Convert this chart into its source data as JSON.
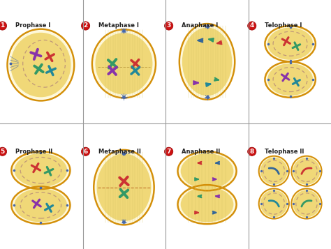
{
  "bg_color": "#ffffff",
  "cell_fill": "#f0d878",
  "cell_fill2": "#f5e898",
  "cell_edge": "#d4900a",
  "cell_edge2": "#c87800",
  "nucleus_fill": "#e8f0e0",
  "nucleus_edge": "#b09070",
  "title_labels": [
    "Prophase I",
    "Metaphase I",
    "Anaphase I",
    "Telophase I",
    "Prophase II",
    "Metaphase II",
    "Anaphase II",
    "Telophase II"
  ],
  "numbers": [
    "1",
    "2",
    "3",
    "4",
    "5",
    "6",
    "7",
    "8"
  ],
  "number_bg": "#cc1111",
  "spindle_color": "#d4c060",
  "chr_red": "#cc3333",
  "chr_blue": "#336699",
  "chr_green": "#339966",
  "chr_purple": "#8833aa",
  "chr_teal": "#228899",
  "aster_color": "#4466aa"
}
